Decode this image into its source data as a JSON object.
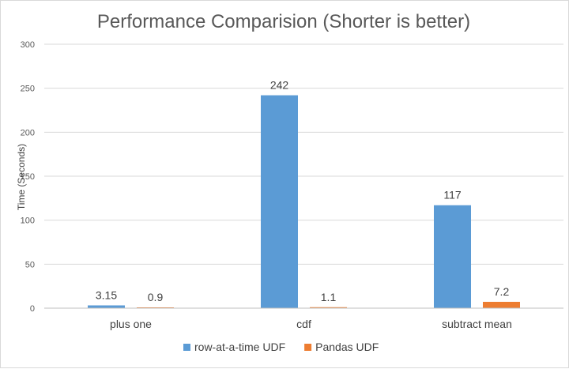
{
  "chart_data": {
    "type": "bar",
    "title": "Performance Comparision (Shorter is better)",
    "xlabel": "",
    "ylabel": "Time (Seconds)",
    "ylim": [
      0,
      300
    ],
    "yticks": [
      0,
      50,
      100,
      150,
      200,
      250,
      300
    ],
    "categories": [
      "plus one",
      "cdf",
      "subtract mean"
    ],
    "series": [
      {
        "name": "row-at-a-time UDF",
        "color": "#5b9bd5",
        "values": [
          3.15,
          242,
          117
        ],
        "labels": [
          "3.15",
          "242",
          "117"
        ]
      },
      {
        "name": "Pandas UDF",
        "color": "#ed7d31",
        "values": [
          0.9,
          1.1,
          7.2
        ],
        "labels": [
          "0.9",
          "1.1",
          "7.2"
        ]
      }
    ],
    "grid": true,
    "legend_position": "bottom"
  }
}
